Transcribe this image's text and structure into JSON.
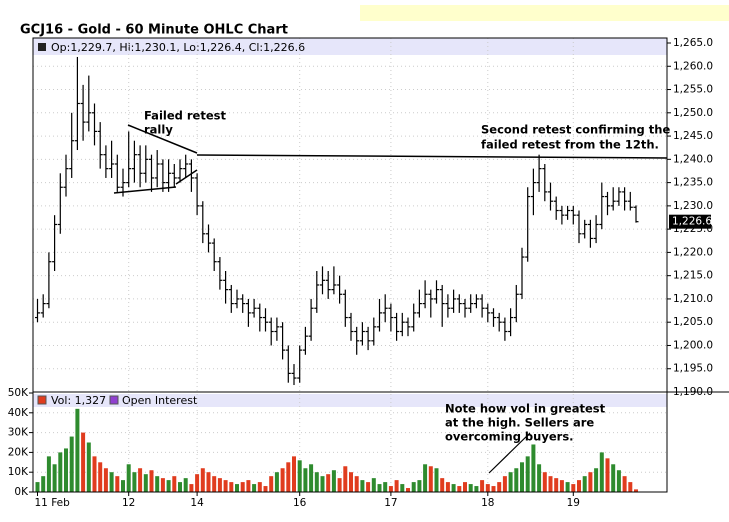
{
  "chart_data": {
    "type": "ohlc",
    "title": "GCJ16 - Gold - 60 Minute OHLC Chart",
    "ohlc_header": "Op:1,229.7, Hi:1,230.1, Lo:1,226.4, Cl:1,226.6",
    "volume_header": "Vol: 1,327",
    "open_interest_label": "Open Interest",
    "annotations": [
      [
        "Failed retest",
        "rally"
      ],
      [
        "Second retest confirming the",
        "failed retest from the 12th."
      ],
      [
        "Note how vol in greatest",
        "at the high.  Sellers are",
        "overcoming      buyers."
      ]
    ],
    "categories": [
      "11 Feb",
      null,
      null,
      null,
      null,
      null,
      null,
      null,
      null,
      null,
      null,
      null,
      null,
      null,
      null,
      null,
      "12",
      null,
      null,
      null,
      null,
      null,
      null,
      null,
      null,
      null,
      null,
      null,
      "14",
      null,
      null,
      null,
      null,
      null,
      null,
      null,
      null,
      null,
      null,
      null,
      null,
      null,
      null,
      null,
      null,
      null,
      "16",
      null,
      null,
      null,
      null,
      null,
      null,
      null,
      null,
      null,
      null,
      null,
      null,
      null,
      null,
      null,
      "17",
      null,
      null,
      null,
      null,
      null,
      null,
      null,
      null,
      null,
      null,
      null,
      null,
      null,
      null,
      null,
      null,
      "18",
      null,
      null,
      null,
      null,
      null,
      null,
      null,
      null,
      null,
      null,
      null,
      null,
      null,
      null,
      "19",
      null,
      null,
      null,
      null,
      null,
      null,
      null,
      null,
      null,
      null,
      null
    ],
    "ohlc": [
      [
        1206,
        1210,
        1205,
        1207
      ],
      [
        1207,
        1211,
        1206,
        1209
      ],
      [
        1209,
        1220,
        1208,
        1218
      ],
      [
        1218,
        1228,
        1216,
        1226
      ],
      [
        1226,
        1237,
        1224,
        1234
      ],
      [
        1234,
        1241,
        1232,
        1238
      ],
      [
        1238,
        1250,
        1236,
        1244
      ],
      [
        1244,
        1262,
        1242,
        1252
      ],
      [
        1252,
        1256,
        1244,
        1248
      ],
      [
        1248,
        1258,
        1246,
        1250
      ],
      [
        1250,
        1252,
        1243,
        1246
      ],
      [
        1246,
        1248,
        1238,
        1241
      ],
      [
        1241,
        1243,
        1236,
        1238
      ],
      [
        1238,
        1244,
        1236,
        1239
      ],
      [
        1239,
        1241,
        1233,
        1234
      ],
      [
        1234,
        1238,
        1232,
        1235
      ],
      [
        1235,
        1246,
        1234,
        1238
      ],
      [
        1238,
        1244,
        1235,
        1241
      ],
      [
        1241,
        1243,
        1234,
        1237
      ],
      [
        1237,
        1243,
        1235,
        1240
      ],
      [
        1240,
        1241,
        1233,
        1236
      ],
      [
        1236,
        1242,
        1234,
        1239
      ],
      [
        1239,
        1240,
        1233,
        1235
      ],
      [
        1235,
        1240,
        1233,
        1237
      ],
      [
        1237,
        1239,
        1234,
        1236
      ],
      [
        1236,
        1240,
        1235,
        1238
      ],
      [
        1238,
        1241,
        1236,
        1239
      ],
      [
        1239,
        1240,
        1233,
        1236
      ],
      [
        1236,
        1237,
        1228,
        1230
      ],
      [
        1230,
        1231,
        1222,
        1224
      ],
      [
        1224,
        1226,
        1220,
        1222
      ],
      [
        1222,
        1223,
        1216,
        1218
      ],
      [
        1218,
        1219,
        1212,
        1214
      ],
      [
        1214,
        1216,
        1209,
        1212
      ],
      [
        1212,
        1213,
        1207,
        1209
      ],
      [
        1209,
        1212,
        1208,
        1210
      ],
      [
        1210,
        1211,
        1207,
        1209
      ],
      [
        1209,
        1210,
        1204,
        1207
      ],
      [
        1207,
        1210,
        1206,
        1208
      ],
      [
        1208,
        1209,
        1203,
        1206
      ],
      [
        1206,
        1208,
        1203,
        1205
      ],
      [
        1205,
        1206,
        1200,
        1203
      ],
      [
        1203,
        1206,
        1201,
        1204
      ],
      [
        1204,
        1205,
        1197,
        1199
      ],
      [
        1199,
        1200,
        1192,
        1194
      ],
      [
        1194,
        1196,
        1191.5,
        1193
      ],
      [
        1193,
        1200,
        1192,
        1199
      ],
      [
        1199,
        1204,
        1198,
        1202
      ],
      [
        1202,
        1210,
        1201,
        1208
      ],
      [
        1208,
        1216,
        1207,
        1213
      ],
      [
        1213,
        1217,
        1211,
        1214
      ],
      [
        1214,
        1216,
        1210,
        1212
      ],
      [
        1212,
        1217,
        1211,
        1213
      ],
      [
        1213,
        1215,
        1209,
        1211
      ],
      [
        1211,
        1212,
        1204,
        1206
      ],
      [
        1206,
        1207,
        1201,
        1203
      ],
      [
        1203,
        1204,
        1198,
        1201
      ],
      [
        1201,
        1205,
        1200,
        1203
      ],
      [
        1203,
        1204,
        1199,
        1201
      ],
      [
        1201,
        1206,
        1200,
        1204
      ],
      [
        1204,
        1210,
        1203,
        1207
      ],
      [
        1207,
        1211,
        1205,
        1208
      ],
      [
        1208,
        1209,
        1203,
        1206
      ],
      [
        1206,
        1207,
        1201,
        1203
      ],
      [
        1203,
        1207,
        1202,
        1205
      ],
      [
        1205,
        1206,
        1202,
        1204
      ],
      [
        1204,
        1209,
        1203,
        1207
      ],
      [
        1207,
        1212,
        1206,
        1209
      ],
      [
        1209,
        1214,
        1208,
        1211
      ],
      [
        1211,
        1212,
        1206,
        1210
      ],
      [
        1210,
        1214,
        1209,
        1212
      ],
      [
        1212,
        1213,
        1204,
        1209
      ],
      [
        1209,
        1211,
        1206,
        1208
      ],
      [
        1208,
        1212,
        1207,
        1210
      ],
      [
        1210,
        1211,
        1207,
        1209
      ],
      [
        1209,
        1210,
        1206,
        1208
      ],
      [
        1208,
        1211,
        1207,
        1209
      ],
      [
        1209,
        1211,
        1208,
        1210
      ],
      [
        1210,
        1211,
        1206,
        1208
      ],
      [
        1208,
        1209,
        1205,
        1207
      ],
      [
        1207,
        1208,
        1204,
        1206
      ],
      [
        1206,
        1207,
        1203,
        1205
      ],
      [
        1205,
        1206,
        1201,
        1203
      ],
      [
        1203,
        1208,
        1202,
        1206
      ],
      [
        1206,
        1213,
        1205,
        1211
      ],
      [
        1211,
        1221,
        1210,
        1219
      ],
      [
        1219,
        1234,
        1218,
        1232
      ],
      [
        1232,
        1238,
        1228,
        1235
      ],
      [
        1235,
        1241,
        1233,
        1238
      ],
      [
        1238,
        1239,
        1231,
        1233
      ],
      [
        1233,
        1235,
        1229,
        1231
      ],
      [
        1231,
        1232,
        1227,
        1229
      ],
      [
        1229,
        1230,
        1226,
        1228
      ],
      [
        1228,
        1230,
        1227,
        1229
      ],
      [
        1229,
        1230,
        1226,
        1228
      ],
      [
        1228,
        1229,
        1222,
        1224
      ],
      [
        1224,
        1227,
        1223,
        1226
      ],
      [
        1226,
        1227,
        1221,
        1223
      ],
      [
        1223,
        1228,
        1222,
        1226
      ],
      [
        1226,
        1235,
        1225,
        1232
      ],
      [
        1232,
        1233,
        1228,
        1230
      ],
      [
        1230,
        1234,
        1229,
        1231
      ],
      [
        1231,
        1234,
        1230,
        1233
      ],
      [
        1233,
        1234,
        1229,
        1231
      ],
      [
        1231,
        1233,
        1229,
        1229.7
      ],
      [
        1229.7,
        1230.1,
        1226.4,
        1226.6
      ]
    ],
    "volume": [
      5000,
      8000,
      18000,
      14000,
      20000,
      22000,
      28000,
      42000,
      30000,
      25000,
      18000,
      15000,
      12000,
      10000,
      8000,
      6000,
      14000,
      10000,
      12000,
      9000,
      11000,
      8000,
      7000,
      6000,
      8000,
      5000,
      7000,
      4000,
      9000,
      12000,
      10000,
      8000,
      7000,
      6000,
      5000,
      4000,
      5000,
      6000,
      4000,
      5000,
      3000,
      8000,
      10000,
      12000,
      15000,
      18000,
      16000,
      12000,
      14000,
      10000,
      8000,
      9000,
      11000,
      7000,
      13000,
      10000,
      8000,
      6000,
      5000,
      7000,
      4000,
      5000,
      3000,
      6000,
      4000,
      2000,
      5000,
      6000,
      14000,
      13000,
      12000,
      7000,
      5000,
      4000,
      3000,
      5000,
      4000,
      3000,
      6000,
      4000,
      3000,
      5000,
      8000,
      10000,
      12000,
      15000,
      18000,
      24000,
      14000,
      10000,
      8000,
      7000,
      6000,
      5000,
      4000,
      6000,
      8000,
      10000,
      12000,
      20000,
      17000,
      14000,
      11000,
      8000,
      5000,
      1327
    ],
    "up_color": "#2e8b2e",
    "down_color": "#e03c1e",
    "bar_color": "#000000",
    "grid": true,
    "ylim": [
      1190,
      1265
    ],
    "yticks": [
      {
        "value": 1190,
        "label": "1,190.0"
      },
      {
        "value": 1195,
        "label": "1,195.0"
      },
      {
        "value": 1200,
        "label": "1,200.0"
      },
      {
        "value": 1205,
        "label": "1,205.0"
      },
      {
        "value": 1210,
        "label": "1,210.0"
      },
      {
        "value": 1215,
        "label": "1,215.0"
      },
      {
        "value": 1220,
        "label": "1,220.0"
      },
      {
        "value": 1225,
        "label": "1,225.0"
      },
      {
        "value": 1230,
        "label": "1,230.0"
      },
      {
        "value": 1235,
        "label": "1,235.0"
      },
      {
        "value": 1240,
        "label": "1,240.0"
      },
      {
        "value": 1245,
        "label": "1,245.0"
      },
      {
        "value": 1250,
        "label": "1,250.0"
      },
      {
        "value": 1255,
        "label": "1,255.0"
      },
      {
        "value": 1260,
        "label": "1,260.0"
      },
      {
        "value": 1265,
        "label": "1,265.0"
      }
    ],
    "last_price": {
      "value": 1226.6,
      "label": "1,226.6"
    },
    "y2lim": [
      0,
      50000
    ],
    "y2ticks": [
      {
        "value": 0,
        "label": "0K"
      },
      {
        "value": 10000,
        "label": "10K"
      },
      {
        "value": 20000,
        "label": "20K"
      },
      {
        "value": 30000,
        "label": "30K"
      },
      {
        "value": 40000,
        "label": "40K"
      },
      {
        "value": 50000,
        "label": "50K"
      }
    ]
  }
}
